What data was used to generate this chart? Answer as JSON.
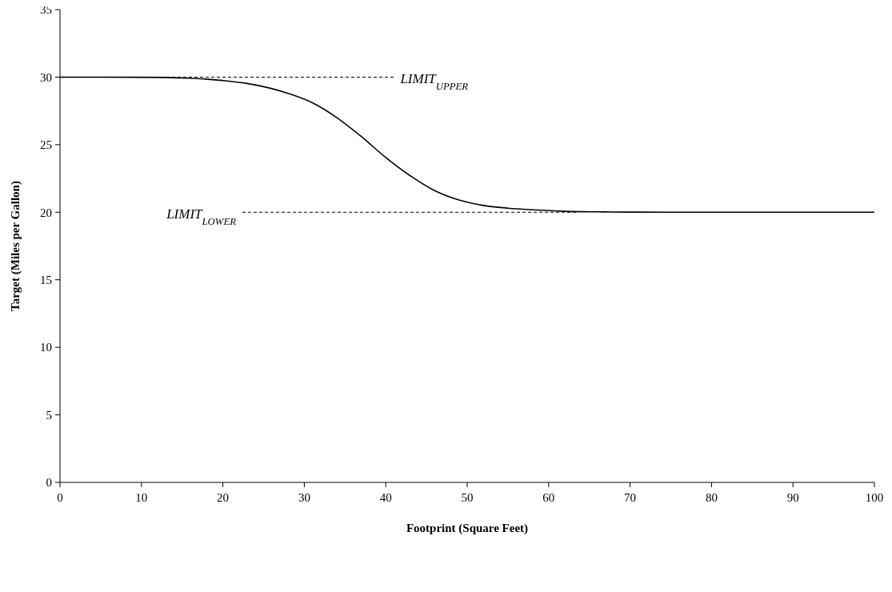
{
  "chart_data": {
    "type": "line",
    "xlabel": "Footprint (Square Feet)",
    "ylabel": "Target (Miles per Gallon)",
    "xlim": [
      0,
      100
    ],
    "ylim": [
      0,
      35
    ],
    "xticks": [
      0,
      10,
      20,
      30,
      40,
      50,
      60,
      70,
      80,
      90,
      100
    ],
    "yticks": [
      0,
      5,
      10,
      15,
      20,
      25,
      30,
      35
    ],
    "grid": false,
    "series": [
      {
        "color": "#000000",
        "line_style": "solid",
        "x": [
          0,
          10,
          16,
          20,
          23,
          28,
          31,
          34,
          37,
          40,
          43,
          46,
          49,
          52,
          55,
          58,
          62,
          66,
          70,
          80,
          100
        ],
        "values": [
          30,
          29.99,
          29.92,
          29.75,
          29.53,
          28.8,
          28.1,
          27.0,
          25.6,
          24.05,
          22.7,
          21.6,
          20.9,
          20.5,
          20.3,
          20.18,
          20.07,
          20.03,
          20.01,
          20,
          20
        ]
      },
      {
        "name": "LIMIT$_{UPPER}$",
        "color": "#000000",
        "line_style": "dashed",
        "x": [
          0,
          41
        ],
        "values": [
          30,
          30
        ]
      },
      {
        "name": "LIMIT$_{LOWER}$",
        "color": "#000000",
        "line_style": "dashed",
        "x": [
          22.4,
          63.4
        ],
        "values": [
          20,
          20
        ]
      }
    ]
  }
}
